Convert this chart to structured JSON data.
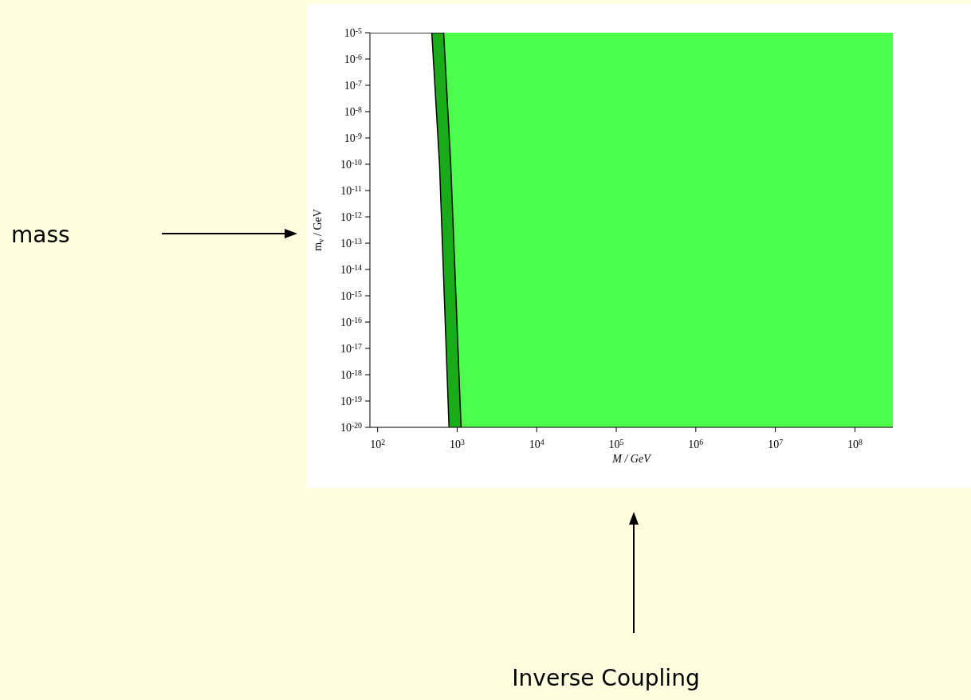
{
  "chart_data": {
    "type": "area",
    "xlabel": "M / GeV",
    "ylabel": "m$_{ν}$ / GeV",
    "log": "xy",
    "xlim": [
      80,
      300000000
    ],
    "ylim": [
      1e-20,
      1e-05
    ],
    "xticks": [
      {
        "value": 100,
        "label": "10$^{2}$"
      },
      {
        "value": 1000,
        "label": "10$^{3}$"
      },
      {
        "value": 10000,
        "label": "10$^{4}$"
      },
      {
        "value": 100000,
        "label": "10$^{5}$"
      },
      {
        "value": 1000000,
        "label": "10$^{6}$"
      },
      {
        "value": 10000000,
        "label": "10$^{7}$"
      },
      {
        "value": 100000000,
        "label": "10$^{8}$"
      }
    ],
    "yticks": [
      {
        "value": 1e-20,
        "label": "10$^{-20}$"
      },
      {
        "value": 1e-19,
        "label": "10$^{-19}$"
      },
      {
        "value": 1e-18,
        "label": "10$^{-18}$"
      },
      {
        "value": 1e-17,
        "label": "10$^{-17}$"
      },
      {
        "value": 1e-16,
        "label": "10$^{-16}$"
      },
      {
        "value": 1e-15,
        "label": "10$^{-15}$"
      },
      {
        "value": 1e-14,
        "label": "10$^{-14}$"
      },
      {
        "value": 1e-13,
        "label": "10$^{-13}$"
      },
      {
        "value": 1e-12,
        "label": "10$^{-12}$"
      },
      {
        "value": 1e-11,
        "label": "10$^{-11}$"
      },
      {
        "value": 1e-10,
        "label": "10$^{-10}$"
      },
      {
        "value": 1e-09,
        "label": "10$^{-9}$"
      },
      {
        "value": 1e-08,
        "label": "10$^{-8}$"
      },
      {
        "value": 1e-07,
        "label": "10$^{-7}$"
      },
      {
        "value": 1e-06,
        "label": "10$^{-6}$"
      },
      {
        "value": 1e-05,
        "label": "10$^{-5}$"
      }
    ],
    "series": [
      {
        "color": "#1aab1a",
        "x": [
          80,
          676,
          830,
          1120
        ],
        "values": [
          1e-05,
          1e-05,
          1e-10,
          1e-20
        ]
      },
      {
        "color": "#ffffff",
        "x": [
          80,
          480,
          600,
          790
        ],
        "values": [
          1e-05,
          1e-05,
          1e-10,
          1e-20
        ]
      }
    ],
    "bands": [
      {
        "axis": "x",
        "from": 676,
        "to": 300000000,
        "color": "#4cff4c"
      }
    ],
    "annotations": [
      "mass",
      "Inverse Coupling"
    ]
  }
}
